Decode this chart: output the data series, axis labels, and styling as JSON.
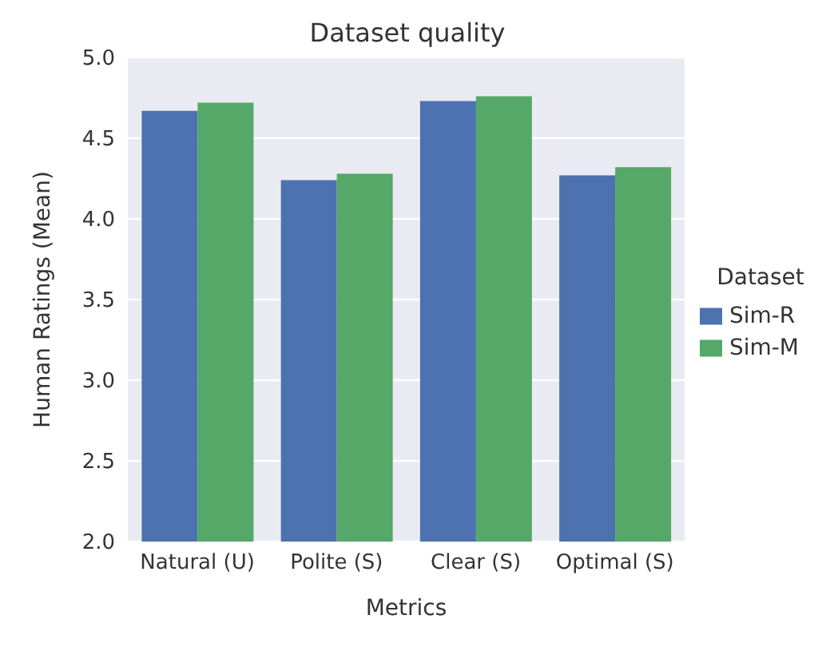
{
  "chart_data": {
    "type": "bar",
    "title": "Dataset quality",
    "xlabel": "Metrics",
    "ylabel": "Human Ratings (Mean)",
    "legend_title": "Dataset",
    "categories": [
      "Natural (U)",
      "Polite (S)",
      "Clear (S)",
      "Optimal (S)"
    ],
    "series": [
      {
        "name": "Sim-R",
        "color": "#4c72b0",
        "values": [
          4.67,
          4.24,
          4.73,
          4.27
        ]
      },
      {
        "name": "Sim-M",
        "color": "#55a868",
        "values": [
          4.72,
          4.28,
          4.76,
          4.32
        ]
      }
    ],
    "ylim": [
      2.0,
      5.0
    ],
    "yticks": [
      {
        "value": 2,
        "label": "2.0"
      },
      {
        "value": 2.5,
        "label": "2.5"
      },
      {
        "value": 3,
        "label": "3.0"
      },
      {
        "value": 3.5,
        "label": "3.5"
      },
      {
        "value": 4,
        "label": "4.0"
      },
      {
        "value": 4.5,
        "label": "4.5"
      },
      {
        "value": 5,
        "label": "5.0"
      }
    ],
    "grid": "y",
    "legend": "right"
  }
}
